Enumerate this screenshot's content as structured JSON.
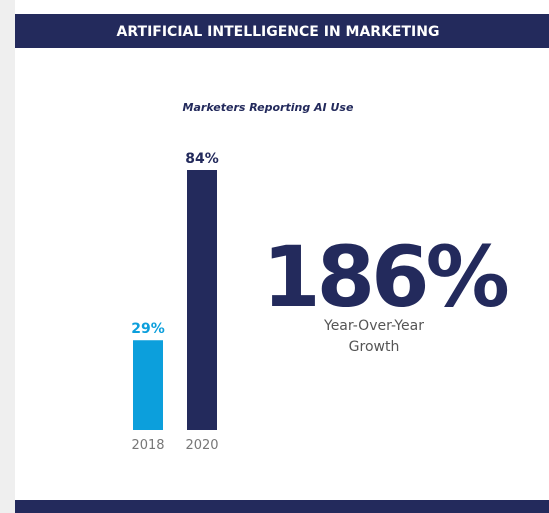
{
  "chart_data": {
    "type": "bar",
    "title": "ARTIFICIAL INTELLIGENCE IN MARKETING",
    "subtitle": "Marketers Reporting AI Use",
    "categories": [
      "2018",
      "2020"
    ],
    "values": [
      29,
      84
    ],
    "value_labels": [
      "29%",
      "84%"
    ],
    "colors": [
      "#0c9fdc",
      "#232a5c"
    ],
    "highlight": {
      "value_label": "186%",
      "caption": [
        "Year-Over-Year",
        "Growth"
      ]
    }
  }
}
